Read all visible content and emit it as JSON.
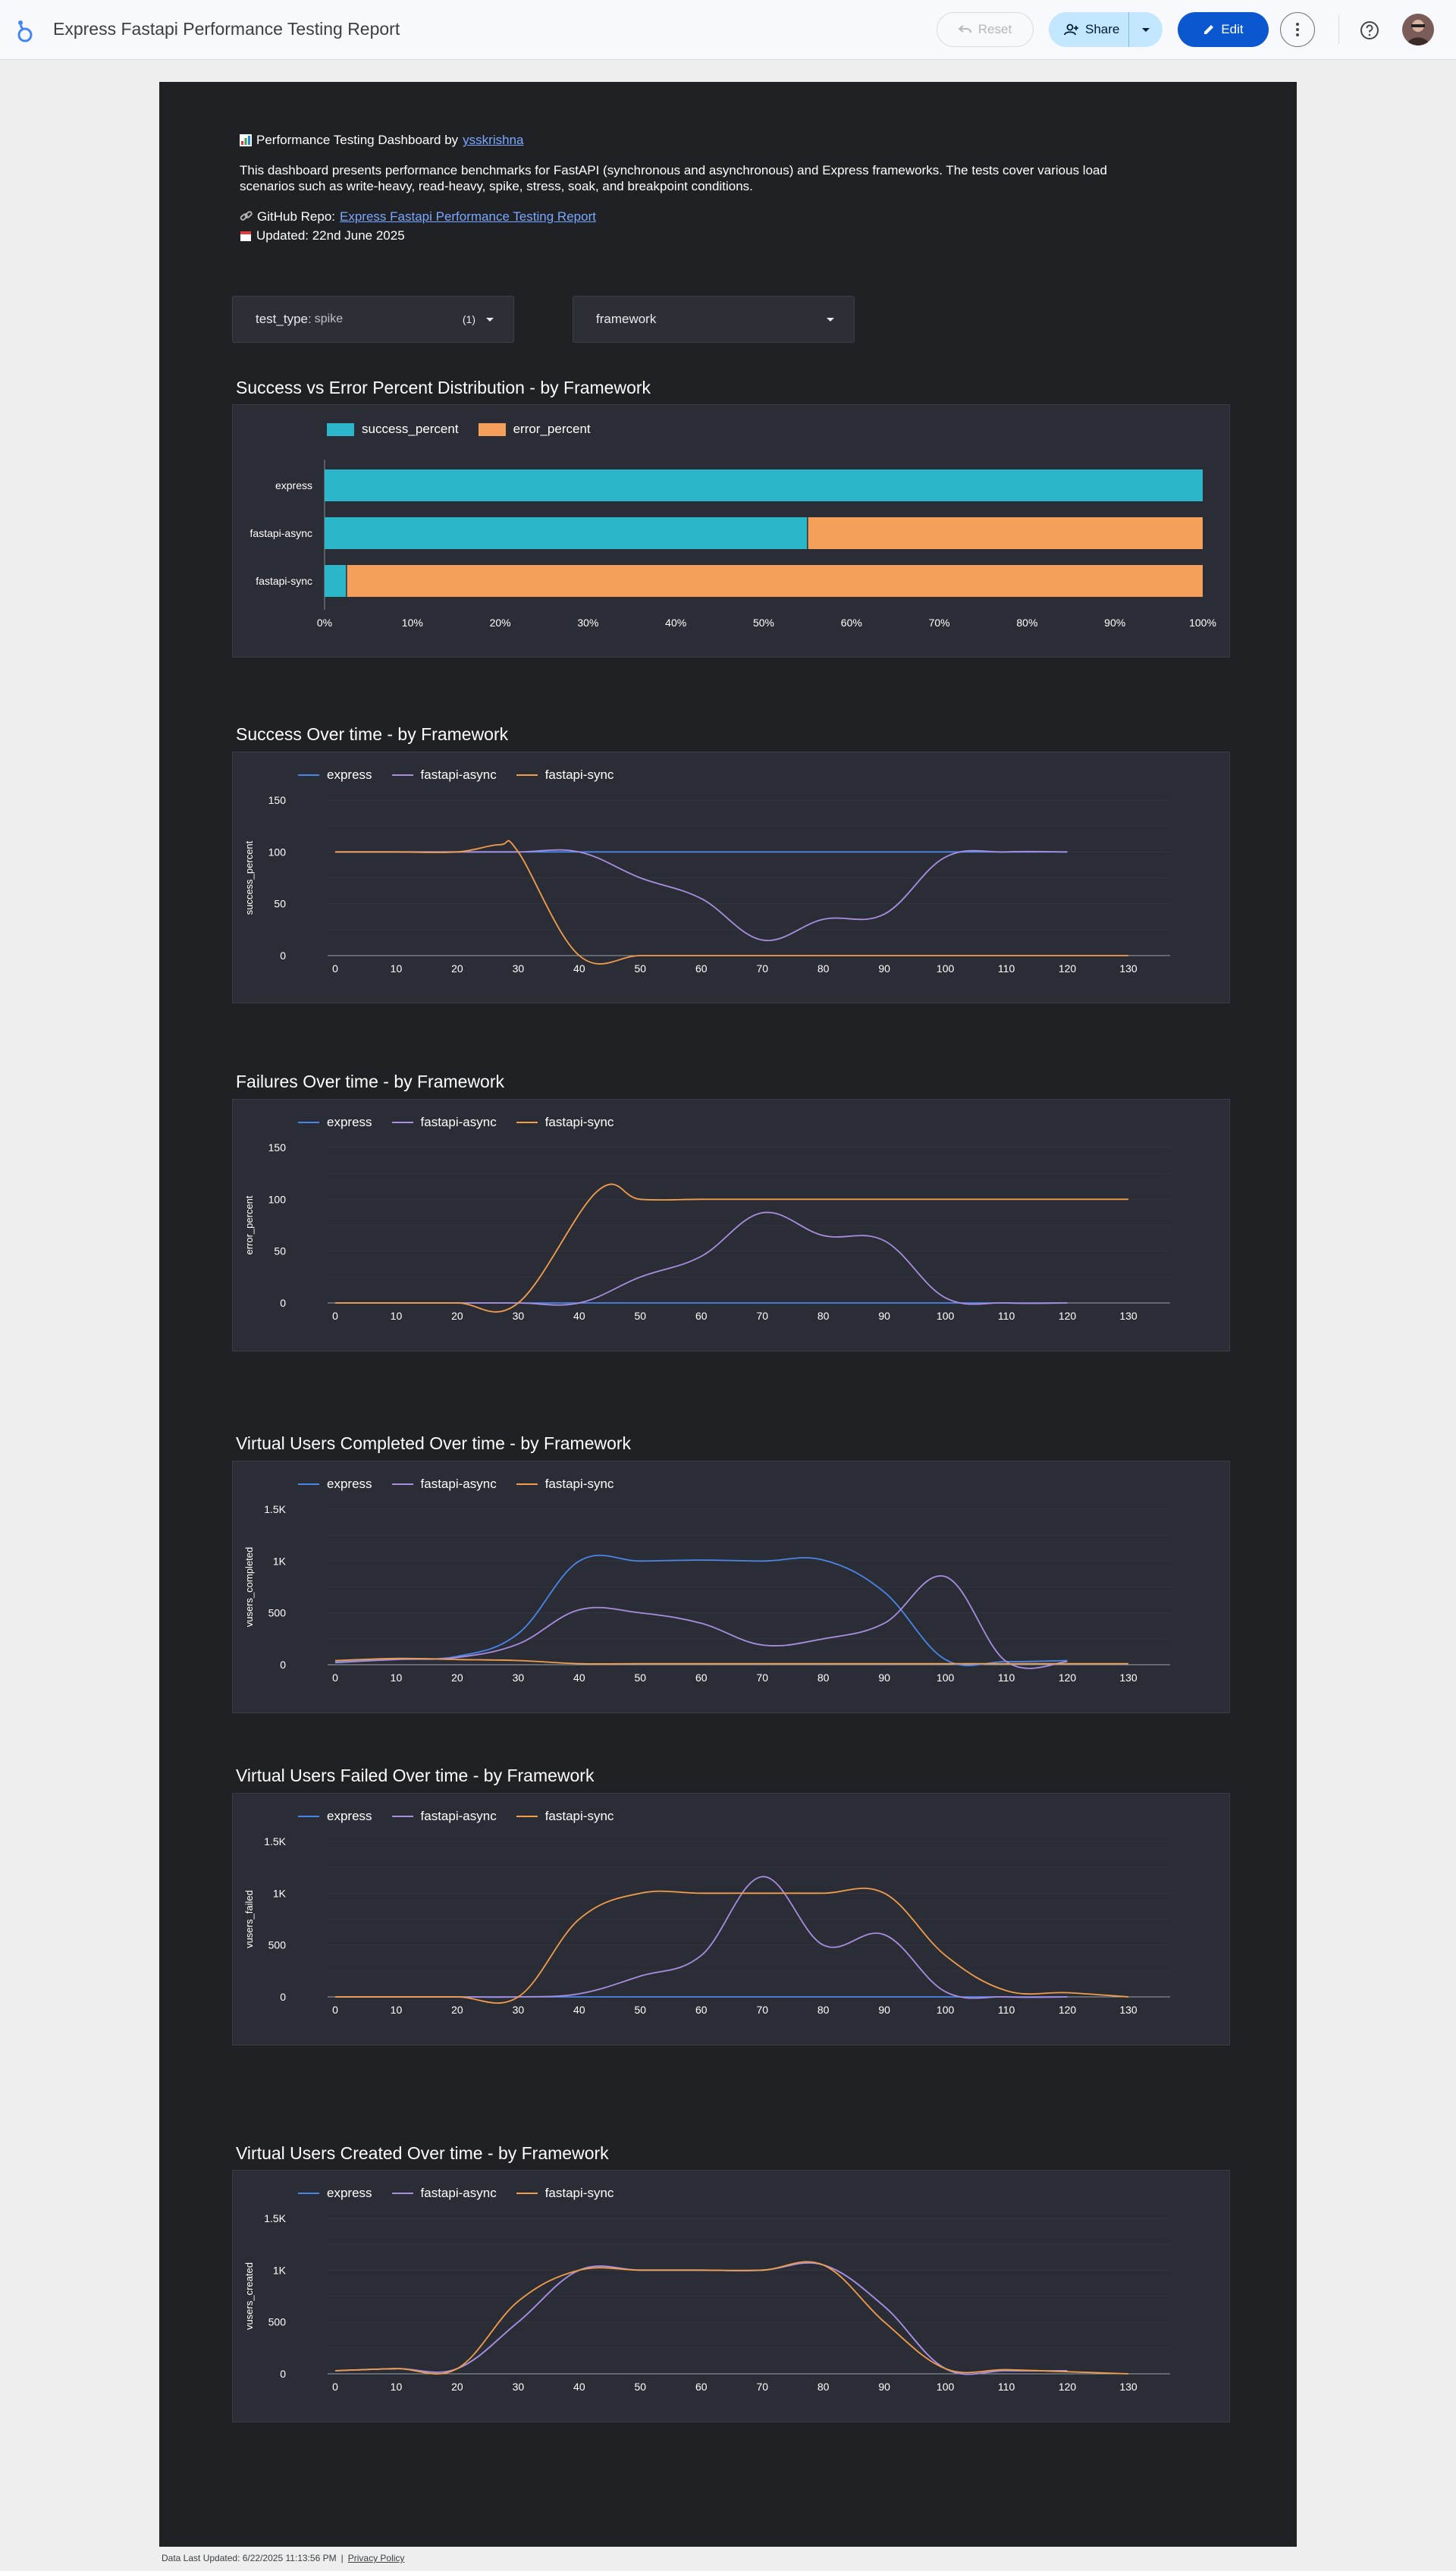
{
  "app": {
    "title": "Express Fastapi Performance Testing Report",
    "reset_label": "Reset",
    "share_label": "Share",
    "edit_label": "Edit"
  },
  "intro": {
    "heading_prefix": "Performance Testing Dashboard by",
    "author_link": "ysskrishna",
    "description": "This dashboard presents performance benchmarks for FastAPI (synchronous and asynchronous) and Express frameworks. The tests cover various load scenarios such as write-heavy, read-heavy, spike, stress, soak, and breakpoint conditions.",
    "repo_label": "GitHub Repo:",
    "repo_link": "Express Fastapi Performance Testing Report",
    "updated": "Updated: 22nd June 2025"
  },
  "filters": [
    {
      "label": "test_type",
      "value": "spike",
      "count": "(1)"
    },
    {
      "label": "framework",
      "value": "",
      "count": ""
    }
  ],
  "colors": {
    "express": "#4a86e8",
    "fastapi-async": "#a98ddf",
    "fastapi-sync": "#f29d4b",
    "success": "#2bb7c9",
    "error": "#f5a05a"
  },
  "chart_data": [
    {
      "type": "bar",
      "orientation": "horizontal",
      "stacked": true,
      "title": "Success vs Error Percent Distribution - by Framework",
      "categories": [
        "express",
        "fastapi-async",
        "fastapi-sync"
      ],
      "series": [
        {
          "name": "success_percent",
          "values": [
            100,
            55,
            2.5
          ]
        },
        {
          "name": "error_percent",
          "values": [
            0,
            45,
            97.5
          ]
        }
      ],
      "xticks": [
        "0%",
        "10%",
        "20%",
        "30%",
        "40%",
        "50%",
        "60%",
        "70%",
        "80%",
        "90%",
        "100%"
      ],
      "xlim": [
        0,
        100
      ],
      "legend": "top-left"
    },
    {
      "type": "line",
      "title": "Success Over time - by Framework",
      "ylabel": "success_percent",
      "ylim": [
        0,
        150
      ],
      "yticks": [
        "0",
        "50",
        "100",
        "150"
      ],
      "xticks": [
        "0",
        "10",
        "20",
        "30",
        "40",
        "50",
        "60",
        "70",
        "80",
        "90",
        "100",
        "110",
        "120",
        "130"
      ],
      "xlim": [
        0,
        130
      ],
      "legend": "top-left",
      "series": [
        {
          "name": "express",
          "points": [
            [
              0,
              100
            ],
            [
              10,
              100
            ],
            [
              20,
              100
            ],
            [
              30,
              100
            ],
            [
              40,
              100
            ],
            [
              50,
              100
            ],
            [
              60,
              100
            ],
            [
              70,
              100
            ],
            [
              80,
              100
            ],
            [
              90,
              100
            ],
            [
              100,
              100
            ],
            [
              110,
              100
            ],
            [
              120,
              100
            ]
          ]
        },
        {
          "name": "fastapi-async",
          "points": [
            [
              0,
              100
            ],
            [
              10,
              100
            ],
            [
              20,
              100
            ],
            [
              30,
              100
            ],
            [
              40,
              100
            ],
            [
              50,
              75
            ],
            [
              60,
              55
            ],
            [
              70,
              15
            ],
            [
              80,
              35
            ],
            [
              90,
              40
            ],
            [
              100,
              95
            ],
            [
              110,
              100
            ],
            [
              120,
              100
            ]
          ]
        },
        {
          "name": "fastapi-sync",
          "points": [
            [
              0,
              100
            ],
            [
              10,
              100
            ],
            [
              20,
              100
            ],
            [
              27,
              107
            ],
            [
              30,
              100
            ],
            [
              40,
              0
            ],
            [
              50,
              0
            ],
            [
              60,
              0
            ],
            [
              70,
              0
            ],
            [
              80,
              0
            ],
            [
              90,
              0
            ],
            [
              100,
              0
            ],
            [
              110,
              0
            ],
            [
              120,
              0
            ],
            [
              130,
              0
            ]
          ]
        }
      ]
    },
    {
      "type": "line",
      "title": "Failures Over time - by Framework",
      "ylabel": "error_percent",
      "ylim": [
        0,
        150
      ],
      "yticks": [
        "0",
        "50",
        "100",
        "150"
      ],
      "xticks": [
        "0",
        "10",
        "20",
        "30",
        "40",
        "50",
        "60",
        "70",
        "80",
        "90",
        "100",
        "110",
        "120",
        "130"
      ],
      "xlim": [
        0,
        130
      ],
      "legend": "top-left",
      "series": [
        {
          "name": "express",
          "points": [
            [
              0,
              0
            ],
            [
              10,
              0
            ],
            [
              20,
              0
            ],
            [
              30,
              0
            ],
            [
              40,
              0
            ],
            [
              50,
              0
            ],
            [
              60,
              0
            ],
            [
              70,
              0
            ],
            [
              80,
              0
            ],
            [
              90,
              0
            ],
            [
              100,
              0
            ],
            [
              110,
              0
            ],
            [
              120,
              0
            ]
          ]
        },
        {
          "name": "fastapi-async",
          "points": [
            [
              0,
              0
            ],
            [
              10,
              0
            ],
            [
              20,
              0
            ],
            [
              30,
              0
            ],
            [
              40,
              0
            ],
            [
              50,
              25
            ],
            [
              60,
              45
            ],
            [
              70,
              87
            ],
            [
              80,
              65
            ],
            [
              90,
              60
            ],
            [
              100,
              5
            ],
            [
              110,
              0
            ],
            [
              120,
              0
            ]
          ]
        },
        {
          "name": "fastapi-sync",
          "points": [
            [
              0,
              0
            ],
            [
              10,
              0
            ],
            [
              20,
              0
            ],
            [
              30,
              0
            ],
            [
              43,
              108
            ],
            [
              50,
              100
            ],
            [
              60,
              100
            ],
            [
              70,
              100
            ],
            [
              80,
              100
            ],
            [
              90,
              100
            ],
            [
              100,
              100
            ],
            [
              110,
              100
            ],
            [
              120,
              100
            ],
            [
              130,
              100
            ]
          ]
        }
      ]
    },
    {
      "type": "line",
      "title": "Virtual Users Completed Over time - by Framework",
      "ylabel": "vusers_completed",
      "ylim": [
        0,
        1500
      ],
      "yticks": [
        "0",
        "500",
        "1K",
        "1.5K"
      ],
      "xticks": [
        "0",
        "10",
        "20",
        "30",
        "40",
        "50",
        "60",
        "70",
        "80",
        "90",
        "100",
        "110",
        "120",
        "130"
      ],
      "xlim": [
        0,
        130
      ],
      "legend": "top-left",
      "series": [
        {
          "name": "express",
          "points": [
            [
              0,
              30
            ],
            [
              10,
              60
            ],
            [
              20,
              80
            ],
            [
              30,
              300
            ],
            [
              40,
              1000
            ],
            [
              50,
              1000
            ],
            [
              60,
              1010
            ],
            [
              70,
              1000
            ],
            [
              80,
              1010
            ],
            [
              90,
              700
            ],
            [
              100,
              50
            ],
            [
              110,
              30
            ],
            [
              120,
              40
            ]
          ]
        },
        {
          "name": "fastapi-async",
          "points": [
            [
              0,
              20
            ],
            [
              10,
              50
            ],
            [
              20,
              70
            ],
            [
              30,
              200
            ],
            [
              40,
              530
            ],
            [
              50,
              500
            ],
            [
              60,
              400
            ],
            [
              70,
              190
            ],
            [
              80,
              250
            ],
            [
              90,
              400
            ],
            [
              100,
              850
            ],
            [
              110,
              30
            ],
            [
              120,
              30
            ]
          ]
        },
        {
          "name": "fastapi-sync",
          "points": [
            [
              0,
              40
            ],
            [
              10,
              60
            ],
            [
              20,
              50
            ],
            [
              30,
              40
            ],
            [
              40,
              10
            ],
            [
              50,
              10
            ],
            [
              60,
              10
            ],
            [
              70,
              10
            ],
            [
              80,
              10
            ],
            [
              90,
              10
            ],
            [
              100,
              10
            ],
            [
              110,
              10
            ],
            [
              120,
              10
            ],
            [
              130,
              10
            ]
          ]
        }
      ]
    },
    {
      "type": "line",
      "title": "Virtual Users Failed Over time - by Framework",
      "ylabel": "vusers_failed",
      "ylim": [
        0,
        1500
      ],
      "yticks": [
        "0",
        "500",
        "1K",
        "1.5K"
      ],
      "xticks": [
        "0",
        "10",
        "20",
        "30",
        "40",
        "50",
        "60",
        "70",
        "80",
        "90",
        "100",
        "110",
        "120",
        "130"
      ],
      "xlim": [
        0,
        130
      ],
      "legend": "top-left",
      "series": [
        {
          "name": "express",
          "points": [
            [
              0,
              0
            ],
            [
              10,
              0
            ],
            [
              20,
              0
            ],
            [
              30,
              0
            ],
            [
              40,
              0
            ],
            [
              50,
              0
            ],
            [
              60,
              0
            ],
            [
              70,
              0
            ],
            [
              80,
              0
            ],
            [
              90,
              0
            ],
            [
              100,
              0
            ],
            [
              110,
              0
            ],
            [
              120,
              0
            ]
          ]
        },
        {
          "name": "fastapi-async",
          "points": [
            [
              0,
              0
            ],
            [
              10,
              0
            ],
            [
              20,
              0
            ],
            [
              30,
              0
            ],
            [
              40,
              30
            ],
            [
              50,
              200
            ],
            [
              60,
              400
            ],
            [
              70,
              1160
            ],
            [
              80,
              500
            ],
            [
              90,
              600
            ],
            [
              100,
              50
            ],
            [
              110,
              0
            ],
            [
              120,
              0
            ]
          ]
        },
        {
          "name": "fastapi-sync",
          "points": [
            [
              0,
              0
            ],
            [
              10,
              0
            ],
            [
              20,
              0
            ],
            [
              30,
              0
            ],
            [
              40,
              750
            ],
            [
              50,
              1000
            ],
            [
              60,
              1000
            ],
            [
              70,
              1000
            ],
            [
              80,
              1000
            ],
            [
              90,
              1000
            ],
            [
              100,
              400
            ],
            [
              110,
              60
            ],
            [
              120,
              40
            ],
            [
              130,
              0
            ]
          ]
        }
      ]
    },
    {
      "type": "line",
      "title": "Virtual Users Created Over time - by Framework",
      "ylabel": "vusers_created",
      "ylim": [
        0,
        1500
      ],
      "yticks": [
        "0",
        "500",
        "1K",
        "1.5K"
      ],
      "xticks": [
        "0",
        "10",
        "20",
        "30",
        "40",
        "50",
        "60",
        "70",
        "80",
        "90",
        "100",
        "110",
        "120",
        "130"
      ],
      "xlim": [
        0,
        130
      ],
      "legend": "top-left",
      "series": [
        {
          "name": "express",
          "points": [
            [
              0,
              30
            ],
            [
              10,
              50
            ],
            [
              20,
              50
            ],
            [
              30,
              500
            ],
            [
              40,
              1000
            ],
            [
              50,
              1000
            ],
            [
              60,
              1000
            ],
            [
              70,
              1000
            ],
            [
              80,
              1050
            ],
            [
              90,
              650
            ],
            [
              100,
              50
            ],
            [
              110,
              30
            ],
            [
              120,
              30
            ]
          ]
        },
        {
          "name": "fastapi-async",
          "points": [
            [
              0,
              30
            ],
            [
              10,
              50
            ],
            [
              20,
              50
            ],
            [
              30,
              500
            ],
            [
              40,
              1000
            ],
            [
              50,
              1000
            ],
            [
              60,
              1000
            ],
            [
              70,
              1000
            ],
            [
              80,
              1050
            ],
            [
              90,
              650
            ],
            [
              100,
              50
            ],
            [
              110,
              30
            ],
            [
              120,
              30
            ]
          ]
        },
        {
          "name": "fastapi-sync",
          "points": [
            [
              0,
              30
            ],
            [
              10,
              50
            ],
            [
              20,
              50
            ],
            [
              30,
              700
            ],
            [
              40,
              1000
            ],
            [
              50,
              1000
            ],
            [
              60,
              1000
            ],
            [
              70,
              1000
            ],
            [
              80,
              1050
            ],
            [
              90,
              500
            ],
            [
              100,
              50
            ],
            [
              110,
              40
            ],
            [
              120,
              20
            ],
            [
              130,
              0
            ]
          ]
        }
      ]
    }
  ],
  "footer": {
    "last_updated": "Data Last Updated: 6/22/2025 11:13:56 PM",
    "privacy": "Privacy Policy"
  }
}
